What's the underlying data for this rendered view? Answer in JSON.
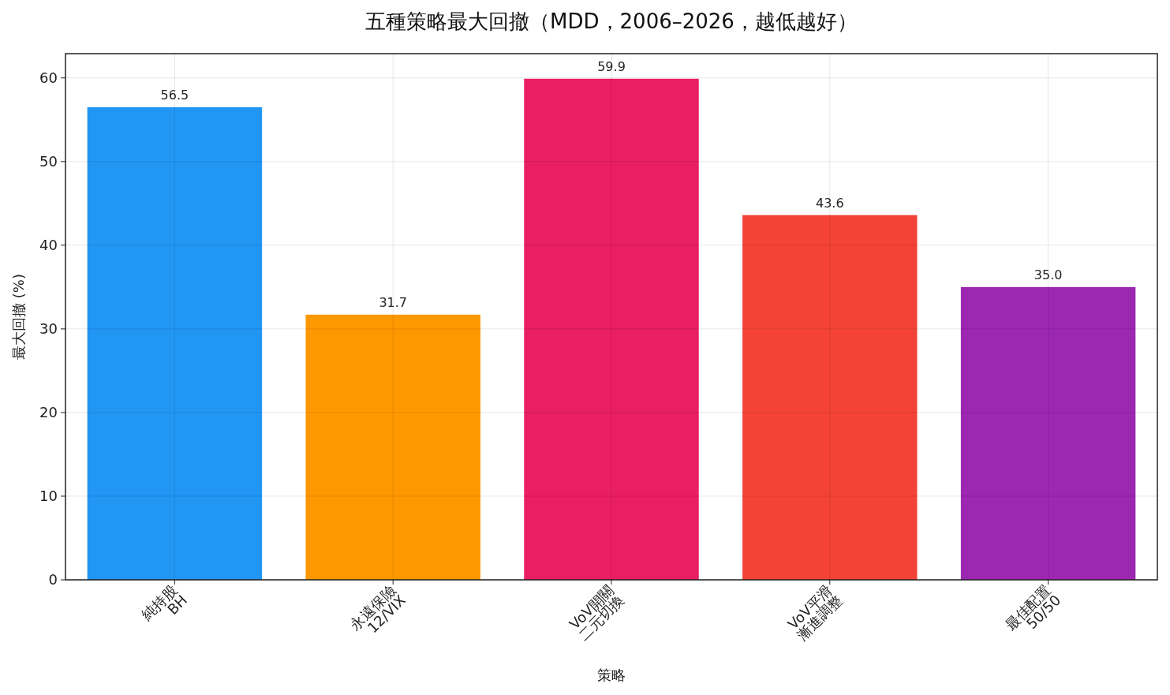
{
  "chart_data": {
    "type": "bar",
    "title": "五種策略最大回撤（MDD，2006–2026，越低越好）",
    "xlabel": "策略",
    "ylabel": "最大回撤 (%)",
    "categories": [
      "純持股\nBH",
      "永遠保險\n12/VIX",
      "VoV開關\n二元切換",
      "VoV平滑\n漸進調整",
      "最佳配置\n50/50"
    ],
    "values": [
      56.5,
      31.7,
      59.9,
      43.6,
      35.0
    ],
    "colors": [
      "#2196f3",
      "#ff9800",
      "#e91e63",
      "#f44336",
      "#9c27b0"
    ],
    "value_labels": [
      "56.5",
      "31.7",
      "59.9",
      "43.6",
      "35.0"
    ],
    "ylim": [
      0,
      62.9
    ],
    "yticks": [
      0,
      10,
      20,
      30,
      40,
      50,
      60
    ],
    "grid": true
  }
}
